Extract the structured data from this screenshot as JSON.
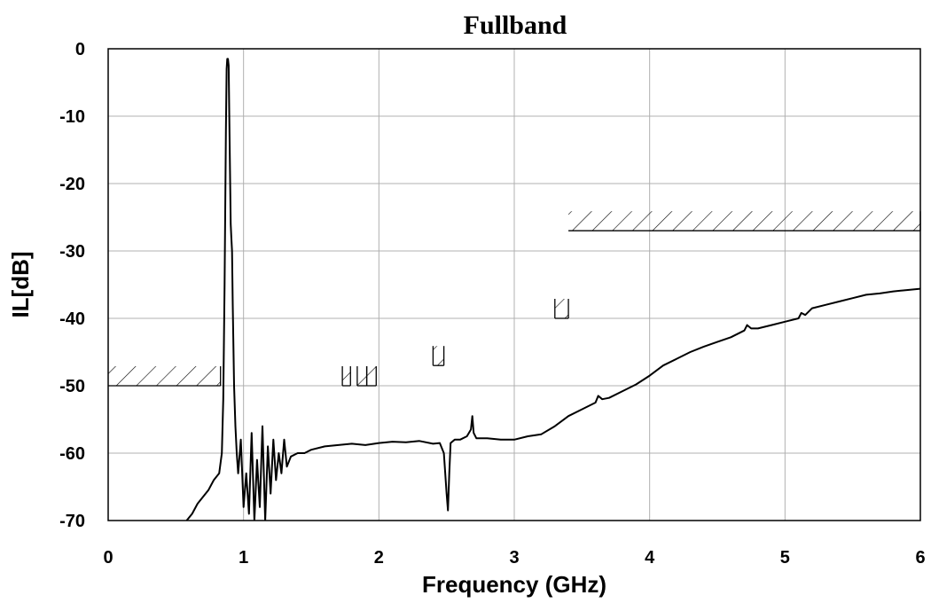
{
  "chart_data": {
    "type": "line",
    "title": "Fullband",
    "xlabel": "Frequency (GHz)",
    "ylabel": "IL[dB]",
    "xlim": [
      0,
      6
    ],
    "ylim": [
      -70,
      0
    ],
    "xticks": [
      0,
      1,
      2,
      3,
      4,
      5,
      6
    ],
    "yticks": [
      0,
      -10,
      -20,
      -30,
      -40,
      -50,
      -60,
      -70
    ],
    "xtick_labels": [
      "0",
      "1",
      "2",
      "3",
      "4",
      "5",
      "6"
    ],
    "ytick_labels": [
      "0",
      "-10",
      "-20",
      "-30",
      "-40",
      "-50",
      "-60",
      "-70"
    ],
    "grid": true,
    "legend": "none",
    "colors": {
      "line": "#000000",
      "grid": "#b0b0b0",
      "mask": "#000000"
    },
    "series": [
      {
        "x": [
          0.58,
          0.62,
          0.66,
          0.7,
          0.74,
          0.78,
          0.82,
          0.84,
          0.85,
          0.86,
          0.87,
          0.875,
          0.88,
          0.885,
          0.89,
          0.895,
          0.9,
          0.905,
          0.91,
          0.915,
          0.92,
          0.93,
          0.94,
          0.95,
          0.96,
          0.98,
          1.0,
          1.02,
          1.04,
          1.06,
          1.08,
          1.1,
          1.12,
          1.14,
          1.16,
          1.18,
          1.2,
          1.22,
          1.24,
          1.26,
          1.28,
          1.3,
          1.32,
          1.35,
          1.4,
          1.45,
          1.5,
          1.6,
          1.7,
          1.8,
          1.9,
          2.0,
          2.1,
          2.2,
          2.3,
          2.4,
          2.45,
          2.48,
          2.5,
          2.51,
          2.52,
          2.53,
          2.56,
          2.6,
          2.65,
          2.68,
          2.69,
          2.7,
          2.72,
          2.8,
          2.9,
          3.0,
          3.1,
          3.2,
          3.3,
          3.4,
          3.5,
          3.6,
          3.62,
          3.65,
          3.7,
          3.8,
          3.9,
          4.0,
          4.1,
          4.2,
          4.3,
          4.4,
          4.5,
          4.6,
          4.7,
          4.72,
          4.75,
          4.8,
          4.9,
          5.0,
          5.1,
          5.12,
          5.15,
          5.2,
          5.3,
          5.4,
          5.5,
          5.6,
          5.7,
          5.8,
          5.9,
          6.0
        ],
        "y": [
          -70.0,
          -69.0,
          -67.5,
          -66.5,
          -65.5,
          -64.0,
          -63.0,
          -60.0,
          -52.0,
          -35.0,
          -12.0,
          -3.0,
          -1.5,
          -1.5,
          -2.5,
          -10.0,
          -18.0,
          -26.0,
          -28.0,
          -30.0,
          -38.0,
          -50.0,
          -56.0,
          -60.0,
          -63.0,
          -58.0,
          -68.0,
          -63.0,
          -69.0,
          -57.0,
          -70.0,
          -61.0,
          -68.0,
          -56.0,
          -70.0,
          -59.0,
          -66.0,
          -58.0,
          -64.0,
          -60.0,
          -63.0,
          -58.0,
          -62.0,
          -60.5,
          -60.0,
          -60.0,
          -59.5,
          -59.0,
          -58.8,
          -58.6,
          -58.8,
          -58.5,
          -58.3,
          -58.4,
          -58.2,
          -58.6,
          -58.5,
          -60.0,
          -66.0,
          -68.5,
          -63.0,
          -58.5,
          -58.0,
          -58.0,
          -57.5,
          -56.5,
          -54.5,
          -57.0,
          -57.8,
          -57.8,
          -58.0,
          -58.0,
          -57.5,
          -57.2,
          -56.0,
          -54.5,
          -53.5,
          -52.5,
          -51.5,
          -52.0,
          -51.8,
          -50.8,
          -49.8,
          -48.5,
          -47.0,
          -46.0,
          -45.0,
          -44.2,
          -43.5,
          -42.8,
          -41.8,
          -41.0,
          -41.5,
          -41.5,
          -41.0,
          -40.5,
          -40.0,
          -39.2,
          -39.5,
          -38.5,
          -38.0,
          -37.5,
          -37.0,
          -36.5,
          -36.3,
          -36.0,
          -35.8,
          -35.6
        ]
      }
    ],
    "masks": [
      {
        "x_start": 0.0,
        "x_end": 0.83,
        "limit": -50
      },
      {
        "x_start": 1.73,
        "x_end": 1.79,
        "limit": -50
      },
      {
        "x_start": 1.84,
        "x_end": 1.91,
        "limit": -50
      },
      {
        "x_start": 1.91,
        "x_end": 1.98,
        "limit": -50
      },
      {
        "x_start": 2.4,
        "x_end": 2.48,
        "limit": -47
      },
      {
        "x_start": 3.3,
        "x_end": 3.4,
        "limit": -40
      },
      {
        "x_start": 3.4,
        "x_end": 6.0,
        "limit": -27
      }
    ]
  }
}
